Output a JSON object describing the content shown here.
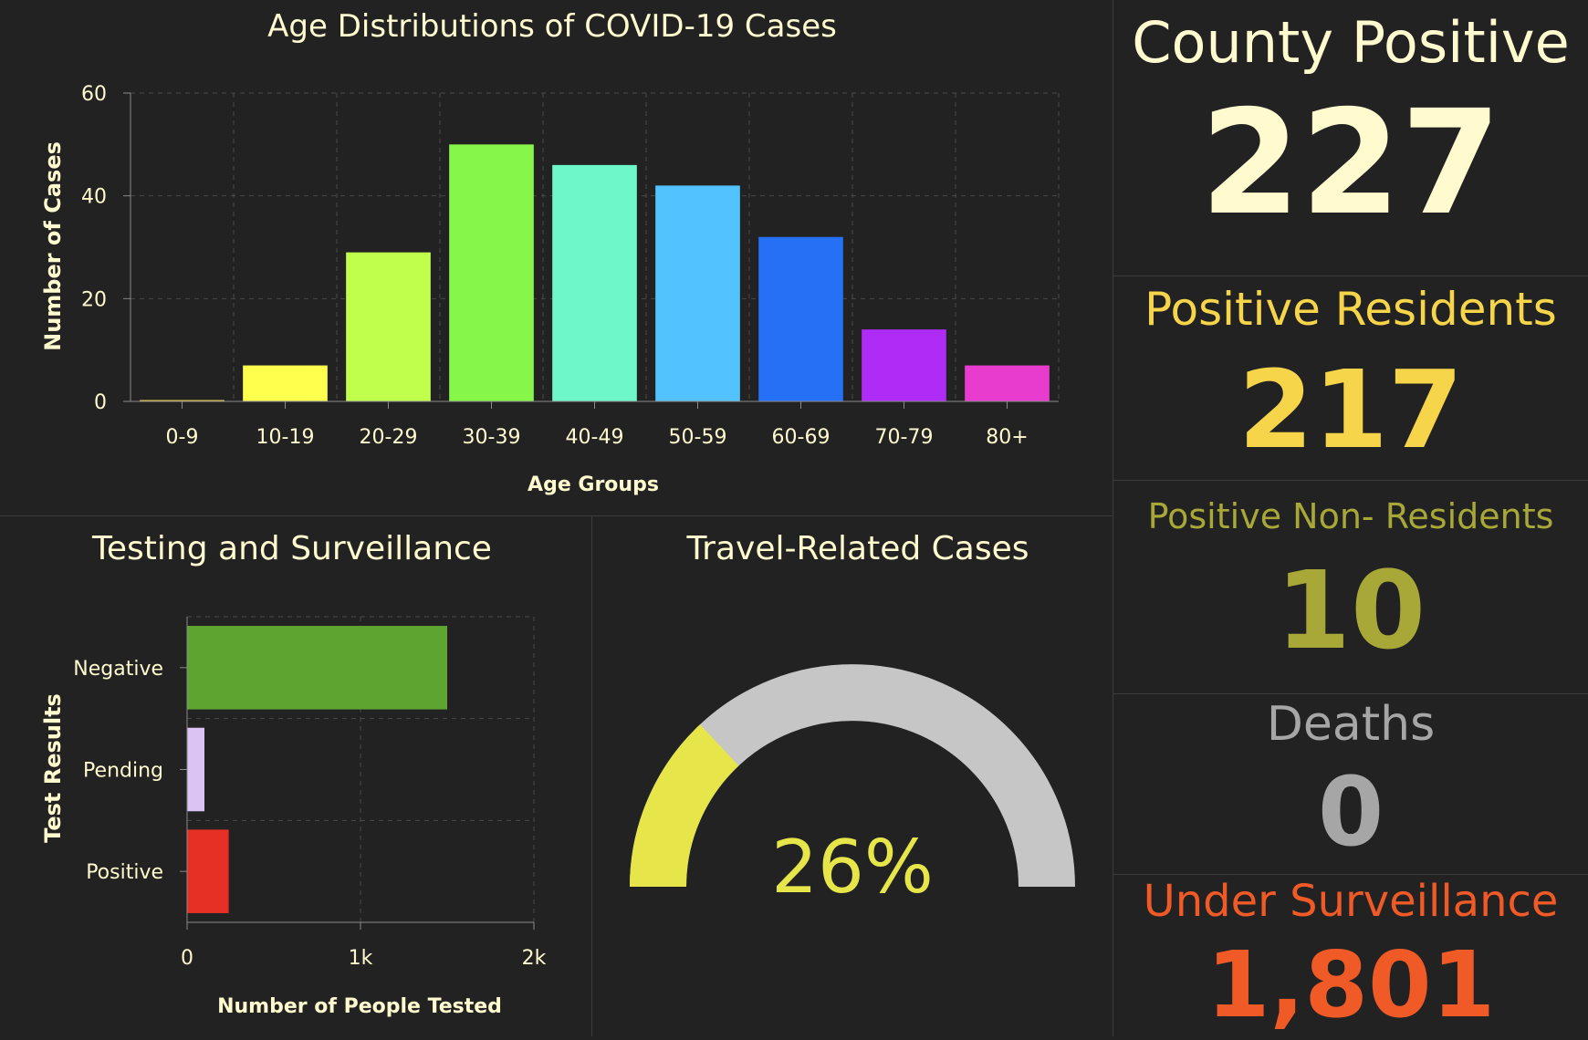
{
  "age_chart": {
    "title": "Age Distributions of COVID-19 Cases",
    "chart_data": {
      "type": "bar",
      "title": "Age Distributions of COVID-19 Cases",
      "xlabel": "Age Groups",
      "ylabel": "Number of Cases",
      "categories": [
        "0-9",
        "10-19",
        "20-29",
        "30-39",
        "40-49",
        "50-59",
        "60-69",
        "70-79",
        "80+"
      ],
      "values": [
        0,
        7,
        29,
        50,
        46,
        42,
        32,
        14,
        7
      ],
      "colors": [
        "#f2c94c",
        "#ffff4d",
        "#c1ff4d",
        "#86f748",
        "#6ef7c8",
        "#52c3ff",
        "#2670f5",
        "#ae2cf5",
        "#e83ccf"
      ],
      "ylim": [
        0,
        60
      ],
      "yticks": [
        0,
        20,
        40,
        60
      ],
      "grid": true
    }
  },
  "testing_chart": {
    "title": "Testing and Surveillance",
    "chart_data": {
      "type": "bar",
      "orientation": "horizontal",
      "title": "Testing and Surveillance",
      "xlabel": "Number of People Tested",
      "ylabel": "Test Results",
      "categories": [
        "Negative",
        "Pending",
        "Positive"
      ],
      "values": [
        1500,
        100,
        240
      ],
      "colors": [
        "#5da530",
        "#dcc3f5",
        "#e63025"
      ],
      "xlim": [
        0,
        2000
      ],
      "xticks": [
        0,
        1000,
        2000
      ],
      "xtick_labels": [
        "0",
        "1k",
        "2k"
      ],
      "grid": true
    }
  },
  "travel_gauge": {
    "title": "Travel-Related Cases",
    "value_text": "26%",
    "fraction": 0.26,
    "fill_color": "#e6e64a",
    "track_color": "#c6c6c6"
  },
  "stats": {
    "county_positive": {
      "label": "County Positive",
      "value": "227",
      "color": "#fffbcf"
    },
    "positive_residents": {
      "label": "Positive Residents",
      "value": "217",
      "color": "#f7d54a"
    },
    "positive_non_residents": {
      "label": "Positive Non- Residents",
      "value": "10",
      "color": "#a8a838"
    },
    "deaths": {
      "label": "Deaths",
      "value": "0",
      "color": "#a6a6a6"
    },
    "under_surveillance": {
      "label": "Under Surveillance",
      "value": "1,801",
      "color": "#ef5a27"
    }
  }
}
